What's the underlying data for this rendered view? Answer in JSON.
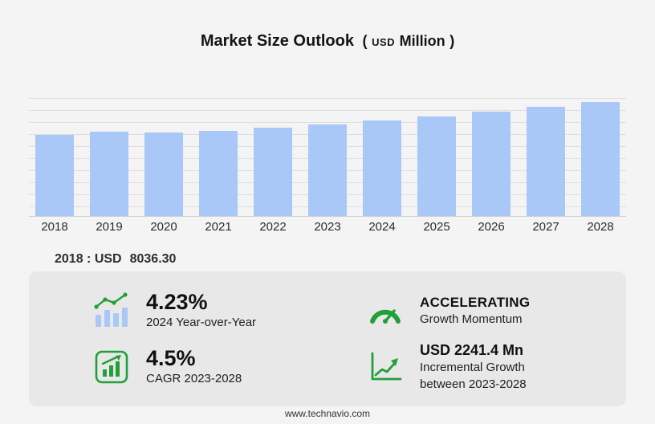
{
  "header": {
    "title": "Market Size Outlook",
    "units_prefix": "(",
    "units_currency": "USD",
    "units_word": "Million",
    "units_suffix": ")"
  },
  "chart_data": {
    "type": "bar",
    "title": "Market Size Outlook (USD Million)",
    "categories": [
      "2018",
      "2019",
      "2020",
      "2021",
      "2022",
      "2023",
      "2024",
      "2025",
      "2026",
      "2027",
      "2028"
    ],
    "values": [
      8036.3,
      8350,
      8280,
      8450,
      8760,
      9105,
      9490,
      9917,
      10363,
      10830,
      11346
    ],
    "xlabel": "",
    "ylabel": "USD Million",
    "grid": "horizontal",
    "legend": "none",
    "bar_color": "#a9c8f8"
  },
  "annotation": {
    "label": "2018 : USD",
    "value": "8036.30"
  },
  "stats": [
    {
      "icon": "yoy-bars-trend-icon",
      "value": "4.23%",
      "label": "2024 Year-over-Year"
    },
    {
      "icon": "speedometer-icon",
      "value": "ACCELERATING",
      "label": "Growth Momentum"
    },
    {
      "icon": "cagr-chart-icon",
      "value": "4.5%",
      "label": "CAGR 2023-2028"
    },
    {
      "icon": "incremental-growth-icon",
      "value": "USD 2241.4 Mn",
      "label": "Incremental Growth between 2023-2028"
    }
  ],
  "footer": {
    "url": "www.technavio.com"
  },
  "colors": {
    "bar": "#a9c8f8",
    "accent_green": "#21a038",
    "panel": "#e8e8e8",
    "background": "#f4f4f4"
  }
}
